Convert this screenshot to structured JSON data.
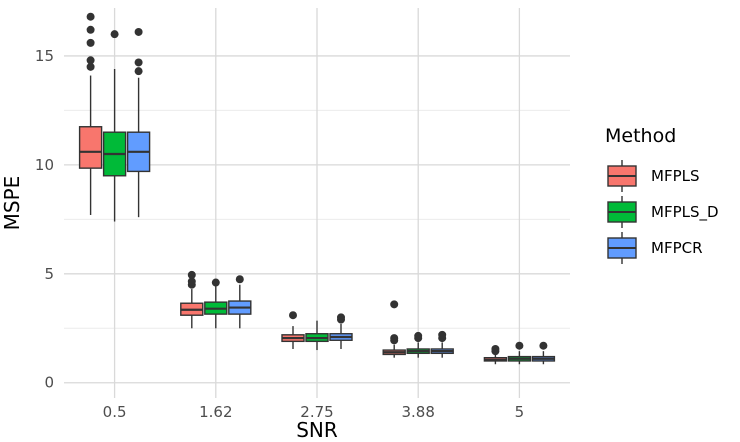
{
  "chart_data": {
    "type": "boxplot",
    "xlabel": "SNR",
    "ylabel": "MSPE",
    "categories": [
      "0.5",
      "1.62",
      "2.75",
      "3.88",
      "5"
    ],
    "ylim": [
      -0.7,
      17.2
    ],
    "yticks": [
      0,
      5,
      10,
      15
    ],
    "grid": true,
    "legend": {
      "title": "Method",
      "position": "right"
    },
    "series": [
      {
        "name": "MFPLS",
        "color": "#F8766D",
        "boxes": [
          {
            "whislo": 7.7,
            "q1": 9.85,
            "med": 10.6,
            "q3": 11.75,
            "whishi": 14.1,
            "fliers": [
              14.5,
              14.8,
              15.6,
              16.2,
              16.8
            ]
          },
          {
            "whislo": 2.5,
            "q1": 3.1,
            "med": 3.35,
            "q3": 3.65,
            "whishi": 4.3,
            "fliers": [
              4.5,
              4.65,
              4.95
            ]
          },
          {
            "whislo": 1.55,
            "q1": 1.9,
            "med": 2.05,
            "q3": 2.2,
            "whishi": 2.6,
            "fliers": [
              3.1
            ]
          },
          {
            "whislo": 1.15,
            "q1": 1.3,
            "med": 1.4,
            "q3": 1.5,
            "whishi": 1.75,
            "fliers": [
              1.95,
              2.05,
              3.6
            ]
          },
          {
            "whislo": 0.85,
            "q1": 1.0,
            "med": 1.05,
            "q3": 1.15,
            "whishi": 1.35,
            "fliers": [
              1.45,
              1.55
            ]
          }
        ]
      },
      {
        "name": "MFPLS_D",
        "color": "#00BA38",
        "boxes": [
          {
            "whislo": 7.4,
            "q1": 9.5,
            "med": 10.5,
            "q3": 11.5,
            "whishi": 14.4,
            "fliers": [
              16.0
            ]
          },
          {
            "whislo": 2.5,
            "q1": 3.15,
            "med": 3.4,
            "q3": 3.7,
            "whishi": 4.45,
            "fliers": [
              4.6
            ]
          },
          {
            "whislo": 1.5,
            "q1": 1.9,
            "med": 2.05,
            "q3": 2.25,
            "whishi": 2.85,
            "fliers": []
          },
          {
            "whislo": 1.15,
            "q1": 1.35,
            "med": 1.45,
            "q3": 1.55,
            "whishi": 1.85,
            "fliers": [
              2.05,
              2.15
            ]
          },
          {
            "whislo": 0.85,
            "q1": 1.0,
            "med": 1.1,
            "q3": 1.2,
            "whishi": 1.45,
            "fliers": [
              1.7
            ]
          }
        ]
      },
      {
        "name": "MFPCR",
        "color": "#619CFF",
        "boxes": [
          {
            "whislo": 7.6,
            "q1": 9.7,
            "med": 10.6,
            "q3": 11.5,
            "whishi": 14.0,
            "fliers": [
              14.3,
              14.7,
              16.1
            ]
          },
          {
            "whislo": 2.5,
            "q1": 3.15,
            "med": 3.45,
            "q3": 3.75,
            "whishi": 4.5,
            "fliers": [
              4.75
            ]
          },
          {
            "whislo": 1.55,
            "q1": 1.95,
            "med": 2.1,
            "q3": 2.25,
            "whishi": 2.7,
            "fliers": [
              2.9,
              3.0
            ]
          },
          {
            "whislo": 1.15,
            "q1": 1.35,
            "med": 1.45,
            "q3": 1.55,
            "whishi": 1.85,
            "fliers": [
              2.05,
              2.2
            ]
          },
          {
            "whislo": 0.85,
            "q1": 1.0,
            "med": 1.1,
            "q3": 1.2,
            "whishi": 1.45,
            "fliers": [
              1.7
            ]
          }
        ]
      }
    ]
  }
}
